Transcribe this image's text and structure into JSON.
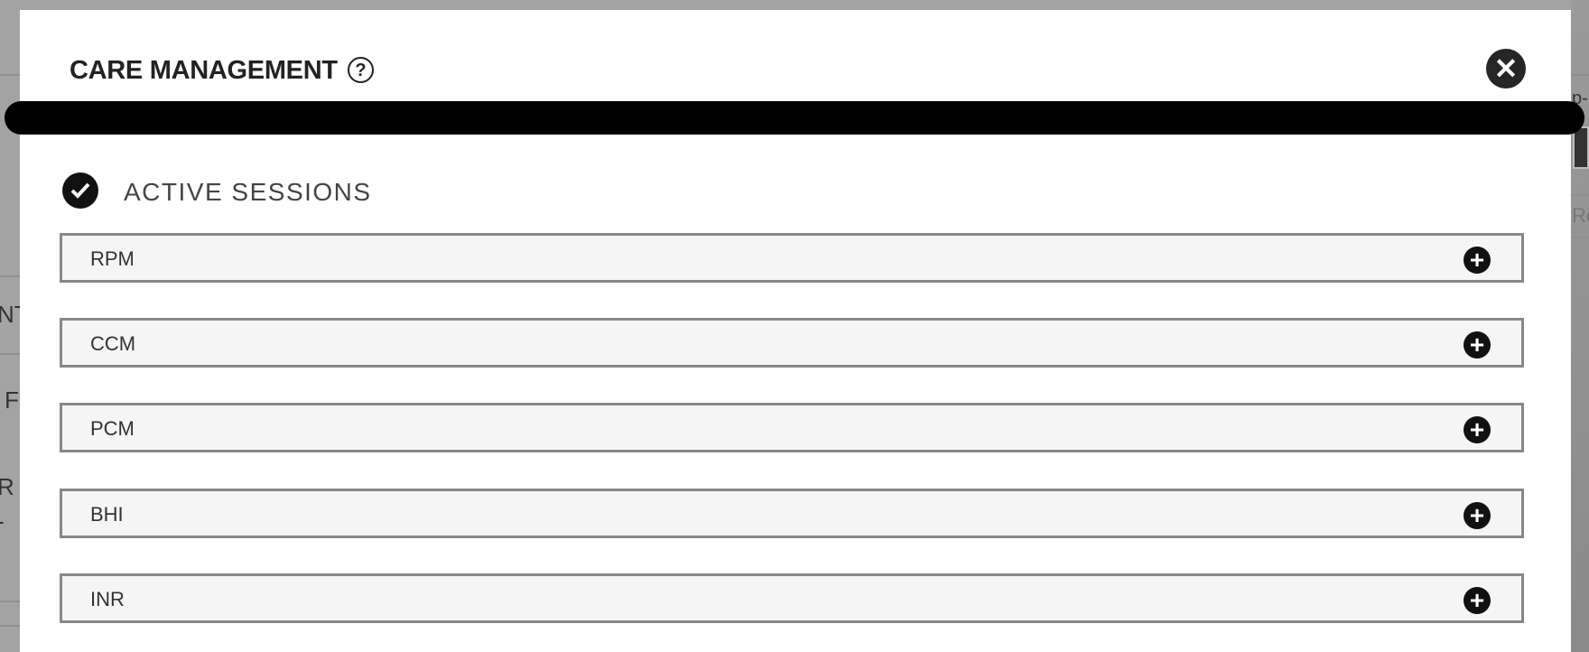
{
  "background": {
    "fragments": [
      "NT",
      "F",
      "R",
      "-",
      "p-",
      "Re"
    ]
  },
  "modal": {
    "title": "CARE MANAGEMENT",
    "help_icon": "?",
    "close_icon": "✕",
    "section": {
      "title": "ACTIVE SESSIONS",
      "icon": "check-circle-icon"
    },
    "rows": [
      {
        "label": "RPM",
        "icon": "+"
      },
      {
        "label": "CCM",
        "icon": "+"
      },
      {
        "label": "PCM",
        "icon": "+"
      },
      {
        "label": "BHI",
        "icon": "+"
      },
      {
        "label": "INR",
        "icon": "+"
      }
    ]
  }
}
